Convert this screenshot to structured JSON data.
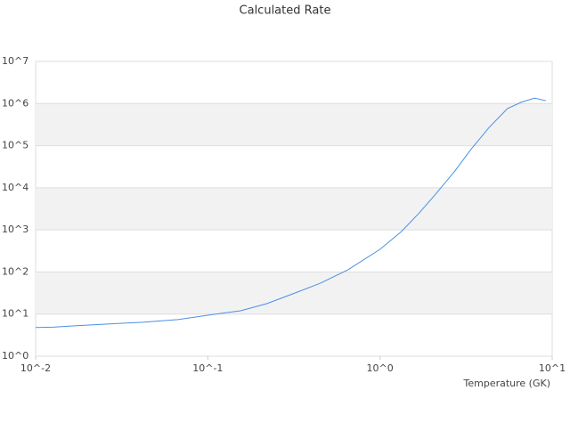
{
  "chart_data": {
    "type": "line",
    "title": "Calculated Rate",
    "x_label": "Temperature (GK)",
    "x": [
      0.01,
      0.0127,
      0.016,
      0.026,
      0.042,
      0.067,
      0.1,
      0.155,
      0.22,
      0.31,
      0.45,
      0.65,
      1,
      1.33,
      1.67,
      2.1,
      2.7,
      3.4,
      4.3,
      5.5,
      6.6,
      7.9,
      9.2
    ],
    "series": [
      {
        "color": "#4a90e2",
        "values": [
          4.8,
          4.9,
          5.2,
          5.8,
          6.4,
          7.4,
          9.4,
          12,
          17.7,
          30,
          54,
          112,
          345,
          910,
          2400,
          7000,
          24000,
          85000,
          270000,
          760000,
          1070000,
          1350000,
          1170000
        ]
      }
    ],
    "xlog": true,
    "ylog": true,
    "xlim": [
      0.01,
      10
    ],
    "ylim": [
      1,
      10000000
    ],
    "xticks": [
      {
        "value": 0.01,
        "label": "10^-2"
      },
      {
        "value": 0.1,
        "label": "10^-1"
      },
      {
        "value": 1,
        "label": "10^0"
      },
      {
        "value": 10,
        "label": "10^1"
      }
    ],
    "yticks": [
      {
        "value": 1,
        "label": "10^0"
      },
      {
        "value": 10,
        "label": "10^1"
      },
      {
        "value": 100,
        "label": "10^2"
      },
      {
        "value": 1000,
        "label": "10^3"
      },
      {
        "value": 10000,
        "label": "10^4"
      },
      {
        "value": 100000,
        "label": "10^5"
      },
      {
        "value": 1000000,
        "label": "10^6"
      },
      {
        "value": 10000000,
        "label": "10^7"
      }
    ],
    "grid": true,
    "alternate_bands": true,
    "band_color": "#f2f2f2"
  }
}
